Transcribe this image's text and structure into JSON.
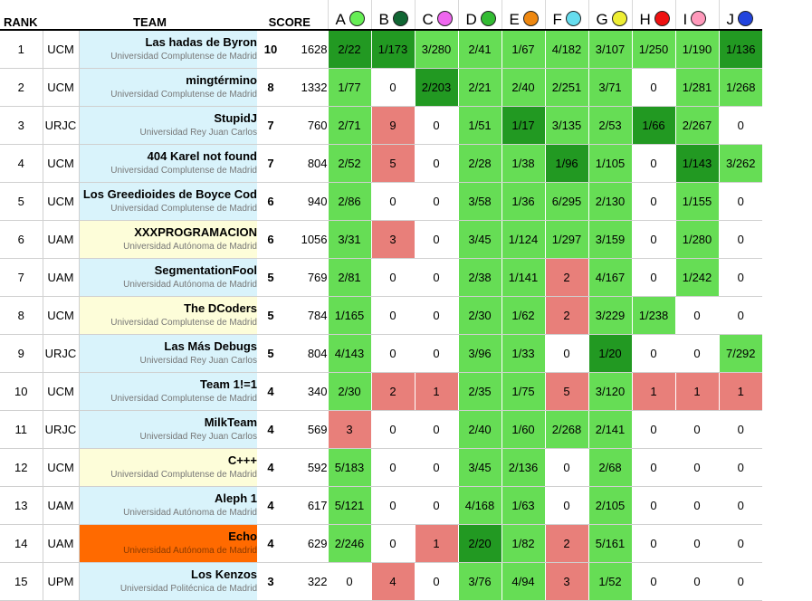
{
  "headers": {
    "rank": "RANK",
    "team": "TEAM",
    "score": "SCORE"
  },
  "problems": [
    {
      "letter": "A",
      "color": "#66ee55"
    },
    {
      "letter": "B",
      "color": "#116633"
    },
    {
      "letter": "C",
      "color": "#ee66ee"
    },
    {
      "letter": "D",
      "color": "#33bb33"
    },
    {
      "letter": "E",
      "color": "#ee8811"
    },
    {
      "letter": "F",
      "color": "#66ddee"
    },
    {
      "letter": "G",
      "color": "#eeee33"
    },
    {
      "letter": "H",
      "color": "#ee1111"
    },
    {
      "letter": "I",
      "color": "#ff99bb"
    },
    {
      "letter": "J",
      "color": "#2244dd"
    }
  ],
  "rows": [
    {
      "rank": "1",
      "aff": "UCM",
      "team": "Las hadas de Byron",
      "uni": "Universidad Complutense de Madrid",
      "solved": "10",
      "score": "1628",
      "bg": "blue",
      "cells": [
        [
          "2/22",
          "first"
        ],
        [
          "1/173",
          "first"
        ],
        [
          "3/280",
          "ok"
        ],
        [
          "2/41",
          "ok"
        ],
        [
          "1/67",
          "ok"
        ],
        [
          "4/182",
          "ok"
        ],
        [
          "3/107",
          "ok"
        ],
        [
          "1/250",
          "ok"
        ],
        [
          "1/190",
          "ok"
        ],
        [
          "1/136",
          "first"
        ]
      ]
    },
    {
      "rank": "2",
      "aff": "UCM",
      "team": "mingtérmino",
      "uni": "Universidad Complutense de Madrid",
      "solved": "8",
      "score": "1332",
      "bg": "blue",
      "cells": [
        [
          "1/77",
          "ok"
        ],
        [
          "0",
          "none"
        ],
        [
          "2/203",
          "first"
        ],
        [
          "2/21",
          "ok"
        ],
        [
          "2/40",
          "ok"
        ],
        [
          "2/251",
          "ok"
        ],
        [
          "3/71",
          "ok"
        ],
        [
          "0",
          "none"
        ],
        [
          "1/281",
          "ok"
        ],
        [
          "1/268",
          "ok"
        ]
      ]
    },
    {
      "rank": "3",
      "aff": "URJC",
      "team": "StupidJ",
      "uni": "Universidad Rey Juan Carlos",
      "solved": "7",
      "score": "760",
      "bg": "blue",
      "cells": [
        [
          "2/71",
          "ok"
        ],
        [
          "9",
          "fail"
        ],
        [
          "0",
          "none"
        ],
        [
          "1/51",
          "ok"
        ],
        [
          "1/17",
          "first"
        ],
        [
          "3/135",
          "ok"
        ],
        [
          "2/53",
          "ok"
        ],
        [
          "1/66",
          "first"
        ],
        [
          "2/267",
          "ok"
        ],
        [
          "0",
          "none"
        ]
      ]
    },
    {
      "rank": "4",
      "aff": "UCM",
      "team": "404 Karel not found",
      "uni": "Universidad Complutense de Madrid",
      "solved": "7",
      "score": "804",
      "bg": "blue",
      "cells": [
        [
          "2/52",
          "ok"
        ],
        [
          "5",
          "fail"
        ],
        [
          "0",
          "none"
        ],
        [
          "2/28",
          "ok"
        ],
        [
          "1/38",
          "ok"
        ],
        [
          "1/96",
          "first"
        ],
        [
          "1/105",
          "ok"
        ],
        [
          "0",
          "none"
        ],
        [
          "1/143",
          "first"
        ],
        [
          "3/262",
          "ok"
        ]
      ]
    },
    {
      "rank": "5",
      "aff": "UCM",
      "team": "Los Greedioides de Boyce Cod",
      "uni": "Universidad Complutense de Madrid",
      "solved": "6",
      "score": "940",
      "bg": "blue",
      "cells": [
        [
          "2/86",
          "ok"
        ],
        [
          "0",
          "none"
        ],
        [
          "0",
          "none"
        ],
        [
          "3/58",
          "ok"
        ],
        [
          "1/36",
          "ok"
        ],
        [
          "6/295",
          "ok"
        ],
        [
          "2/130",
          "ok"
        ],
        [
          "0",
          "none"
        ],
        [
          "1/155",
          "ok"
        ],
        [
          "0",
          "none"
        ]
      ]
    },
    {
      "rank": "6",
      "aff": "UAM",
      "team": "XXXPROGRAMACION",
      "uni": "Universidad Autónoma de Madrid",
      "solved": "6",
      "score": "1056",
      "bg": "yellow",
      "cells": [
        [
          "3/31",
          "ok"
        ],
        [
          "3",
          "fail"
        ],
        [
          "0",
          "none"
        ],
        [
          "3/45",
          "ok"
        ],
        [
          "1/124",
          "ok"
        ],
        [
          "1/297",
          "ok"
        ],
        [
          "3/159",
          "ok"
        ],
        [
          "0",
          "none"
        ],
        [
          "1/280",
          "ok"
        ],
        [
          "0",
          "none"
        ]
      ]
    },
    {
      "rank": "7",
      "aff": "UAM",
      "team": "SegmentationFool",
      "uni": "Universidad Autónoma de Madrid",
      "solved": "5",
      "score": "769",
      "bg": "blue",
      "cells": [
        [
          "2/81",
          "ok"
        ],
        [
          "0",
          "none"
        ],
        [
          "0",
          "none"
        ],
        [
          "2/38",
          "ok"
        ],
        [
          "1/141",
          "ok"
        ],
        [
          "2",
          "fail"
        ],
        [
          "4/167",
          "ok"
        ],
        [
          "0",
          "none"
        ],
        [
          "1/242",
          "ok"
        ],
        [
          "0",
          "none"
        ]
      ]
    },
    {
      "rank": "8",
      "aff": "UCM",
      "team": "The DCoders",
      "uni": "Universidad Complutense de Madrid",
      "solved": "5",
      "score": "784",
      "bg": "yellow",
      "cells": [
        [
          "1/165",
          "ok"
        ],
        [
          "0",
          "none"
        ],
        [
          "0",
          "none"
        ],
        [
          "2/30",
          "ok"
        ],
        [
          "1/62",
          "ok"
        ],
        [
          "2",
          "fail"
        ],
        [
          "3/229",
          "ok"
        ],
        [
          "1/238",
          "ok"
        ],
        [
          "0",
          "none"
        ],
        [
          "0",
          "none"
        ]
      ]
    },
    {
      "rank": "9",
      "aff": "URJC",
      "team": "Las Más Debugs",
      "uni": "Universidad Rey Juan Carlos",
      "solved": "5",
      "score": "804",
      "bg": "blue",
      "cells": [
        [
          "4/143",
          "ok"
        ],
        [
          "0",
          "none"
        ],
        [
          "0",
          "none"
        ],
        [
          "3/96",
          "ok"
        ],
        [
          "1/33",
          "ok"
        ],
        [
          "0",
          "none"
        ],
        [
          "1/20",
          "first"
        ],
        [
          "0",
          "none"
        ],
        [
          "0",
          "none"
        ],
        [
          "7/292",
          "ok"
        ]
      ]
    },
    {
      "rank": "10",
      "aff": "UCM",
      "team": "Team 1!=1",
      "uni": "Universidad Complutense de Madrid",
      "solved": "4",
      "score": "340",
      "bg": "blue",
      "cells": [
        [
          "2/30",
          "ok"
        ],
        [
          "2",
          "fail"
        ],
        [
          "1",
          "fail"
        ],
        [
          "2/35",
          "ok"
        ],
        [
          "1/75",
          "ok"
        ],
        [
          "5",
          "fail"
        ],
        [
          "3/120",
          "ok"
        ],
        [
          "1",
          "fail"
        ],
        [
          "1",
          "fail"
        ],
        [
          "1",
          "fail"
        ]
      ]
    },
    {
      "rank": "11",
      "aff": "URJC",
      "team": "MilkTeam",
      "uni": "Universidad Rey Juan Carlos",
      "solved": "4",
      "score": "569",
      "bg": "blue",
      "cells": [
        [
          "3",
          "fail"
        ],
        [
          "0",
          "none"
        ],
        [
          "0",
          "none"
        ],
        [
          "2/40",
          "ok"
        ],
        [
          "1/60",
          "ok"
        ],
        [
          "2/268",
          "ok"
        ],
        [
          "2/141",
          "ok"
        ],
        [
          "0",
          "none"
        ],
        [
          "0",
          "none"
        ],
        [
          "0",
          "none"
        ]
      ]
    },
    {
      "rank": "12",
      "aff": "UCM",
      "team": "C+++",
      "uni": "Universidad Complutense de Madrid",
      "solved": "4",
      "score": "592",
      "bg": "yellow",
      "cells": [
        [
          "5/183",
          "ok"
        ],
        [
          "0",
          "none"
        ],
        [
          "0",
          "none"
        ],
        [
          "3/45",
          "ok"
        ],
        [
          "2/136",
          "ok"
        ],
        [
          "0",
          "none"
        ],
        [
          "2/68",
          "ok"
        ],
        [
          "0",
          "none"
        ],
        [
          "0",
          "none"
        ],
        [
          "0",
          "none"
        ]
      ]
    },
    {
      "rank": "13",
      "aff": "UAM",
      "team": "Aleph 1",
      "uni": "Universidad Autónoma de Madrid",
      "solved": "4",
      "score": "617",
      "bg": "blue",
      "cells": [
        [
          "5/121",
          "ok"
        ],
        [
          "0",
          "none"
        ],
        [
          "0",
          "none"
        ],
        [
          "4/168",
          "ok"
        ],
        [
          "1/63",
          "ok"
        ],
        [
          "0",
          "none"
        ],
        [
          "2/105",
          "ok"
        ],
        [
          "0",
          "none"
        ],
        [
          "0",
          "none"
        ],
        [
          "0",
          "none"
        ]
      ]
    },
    {
      "rank": "14",
      "aff": "UAM",
      "team": "Echo",
      "uni": "Universidad Autónoma de Madrid",
      "solved": "4",
      "score": "629",
      "bg": "orange",
      "cells": [
        [
          "2/246",
          "ok"
        ],
        [
          "0",
          "none"
        ],
        [
          "1",
          "fail"
        ],
        [
          "2/20",
          "first"
        ],
        [
          "1/82",
          "ok"
        ],
        [
          "2",
          "fail"
        ],
        [
          "5/161",
          "ok"
        ],
        [
          "0",
          "none"
        ],
        [
          "0",
          "none"
        ],
        [
          "0",
          "none"
        ]
      ]
    },
    {
      "rank": "15",
      "aff": "UPM",
      "team": "Los Kenzos",
      "uni": "Universidad Politécnica de Madrid",
      "solved": "3",
      "score": "322",
      "bg": "blue",
      "cells": [
        [
          "0",
          "none"
        ],
        [
          "4",
          "fail"
        ],
        [
          "0",
          "none"
        ],
        [
          "3/76",
          "ok"
        ],
        [
          "4/94",
          "ok"
        ],
        [
          "3",
          "fail"
        ],
        [
          "1/52",
          "ok"
        ],
        [
          "0",
          "none"
        ],
        [
          "0",
          "none"
        ],
        [
          "0",
          "none"
        ]
      ]
    }
  ]
}
